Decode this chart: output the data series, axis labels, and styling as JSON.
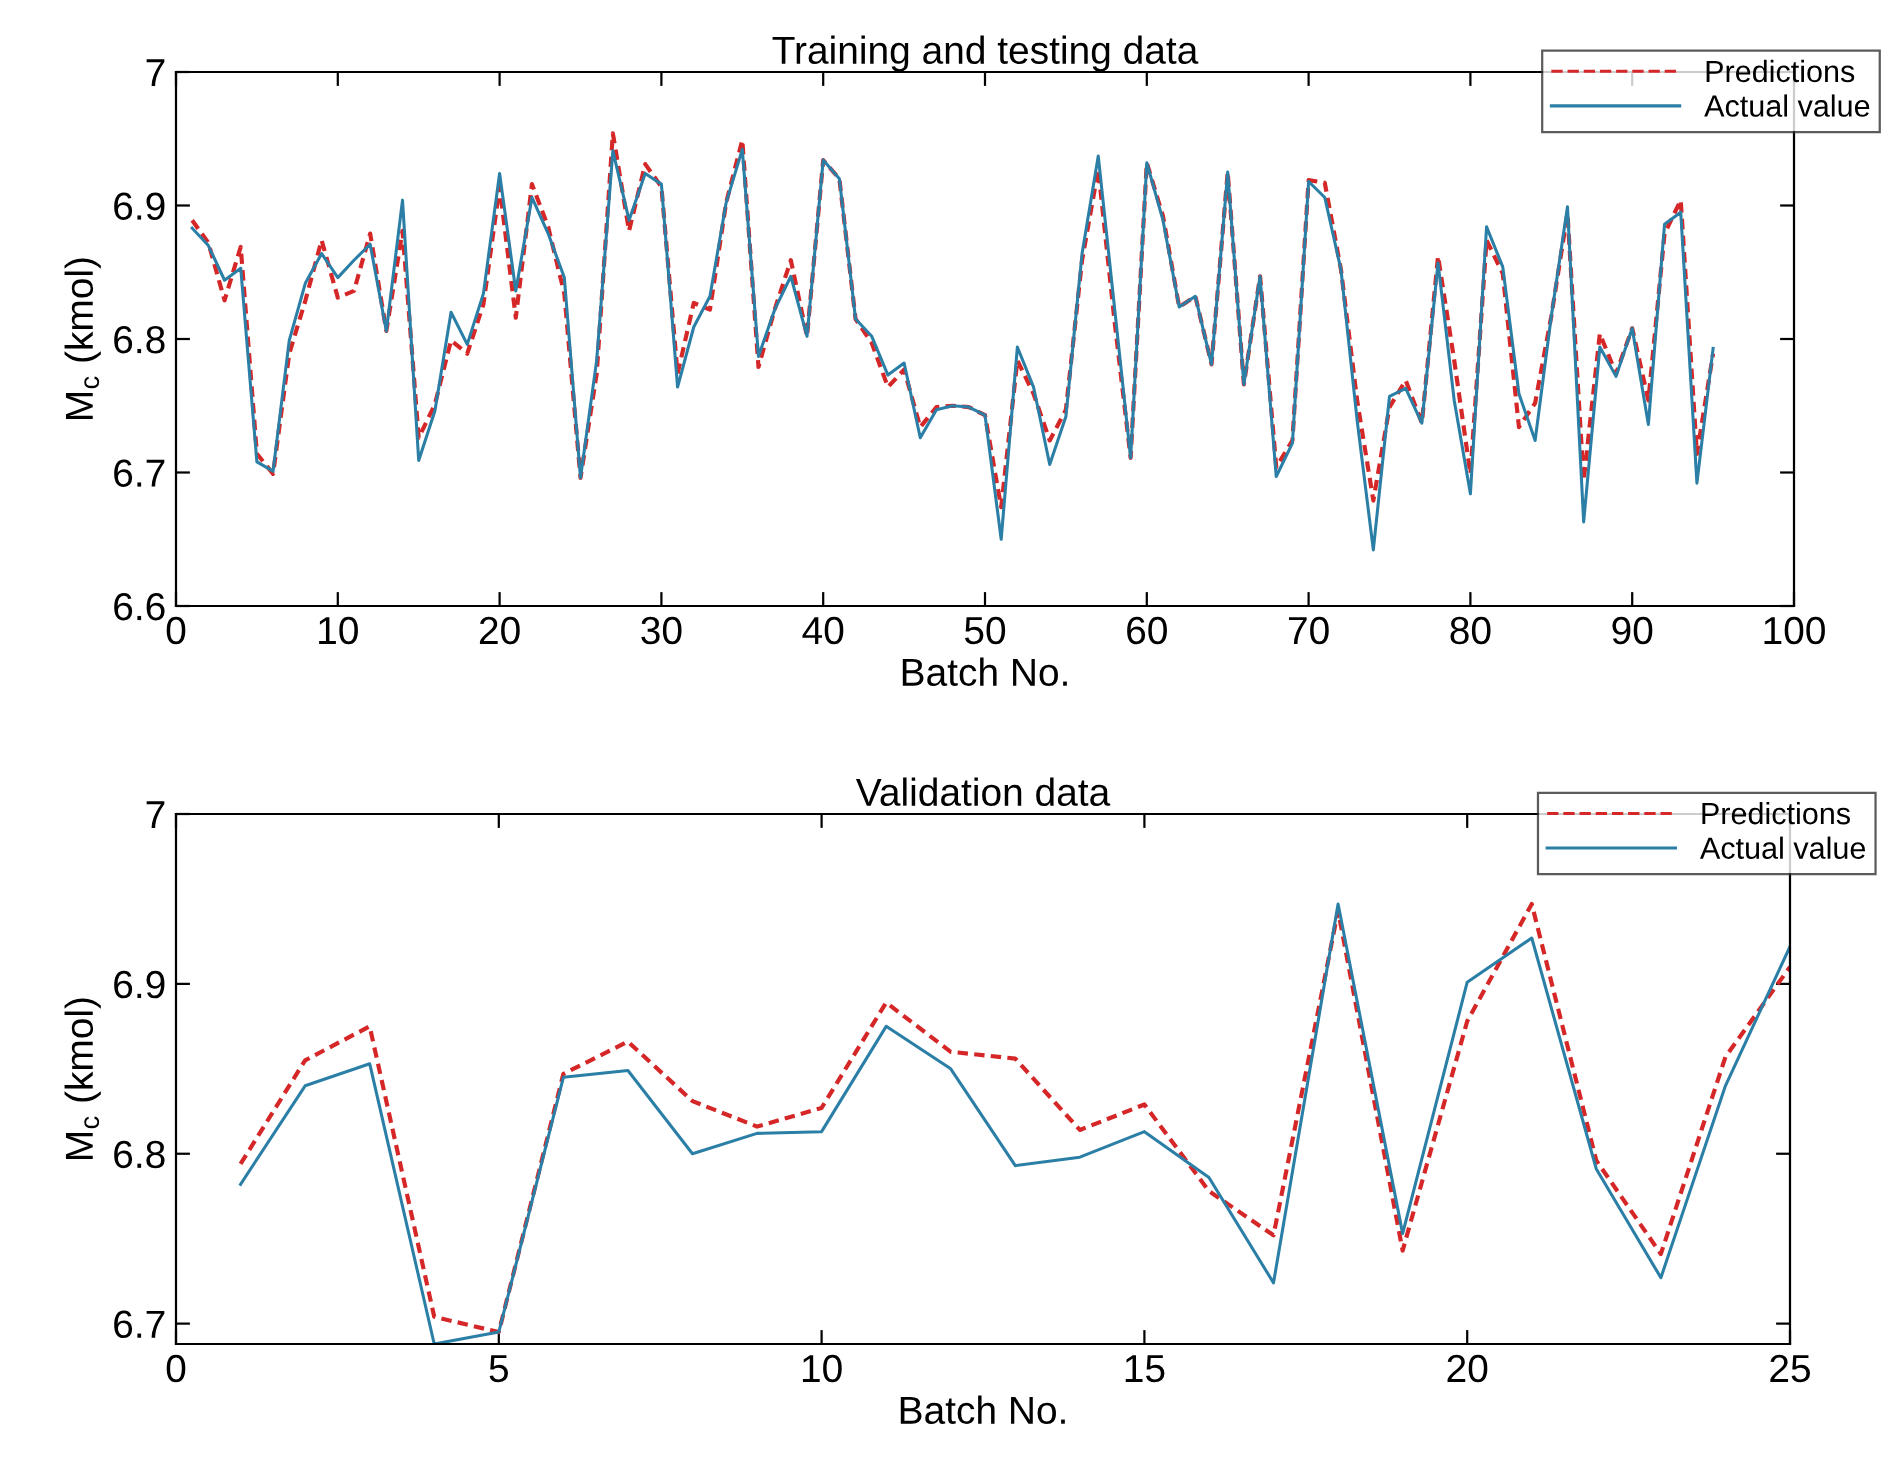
{
  "chart_data": [
    {
      "type": "line",
      "title": "Training and testing data",
      "xlabel": "Batch No.",
      "ylabel": "M$_{c}$ (kmol)",
      "xlim": [
        0,
        100
      ],
      "xticks": [
        0,
        10,
        20,
        30,
        40,
        50,
        60,
        70,
        80,
        90,
        100
      ],
      "ylim": [
        6.6,
        7
      ],
      "yticks": [
        6.6,
        6.7,
        6.8,
        6.9,
        7
      ],
      "legend": "top right",
      "grid": false,
      "x": [
        1,
        2,
        3,
        4,
        5,
        6,
        7,
        8,
        9,
        10,
        11,
        12,
        13,
        14,
        15,
        16,
        17,
        18,
        19,
        20,
        21,
        22,
        23,
        24,
        25,
        26,
        27,
        28,
        29,
        30,
        31,
        32,
        33,
        34,
        35,
        36,
        37,
        38,
        39,
        40,
        41,
        42,
        43,
        44,
        45,
        46,
        47,
        48,
        49,
        50,
        51,
        52,
        53,
        54,
        55,
        56,
        57,
        58,
        59,
        60,
        61,
        62,
        63,
        64,
        65,
        66,
        67,
        68,
        69,
        70,
        71,
        72,
        73,
        74,
        75,
        76,
        77,
        78,
        79,
        80,
        81,
        82,
        83,
        84,
        85,
        86,
        87,
        88,
        89,
        90,
        91,
        92,
        93,
        94,
        95
      ],
      "series": [
        {
          "name": "Predictions",
          "color": "#d62728",
          "line_style": "dashed",
          "values": [
            6.889,
            6.872,
            6.829,
            6.869,
            6.714,
            6.699,
            6.789,
            6.829,
            6.874,
            6.831,
            6.836,
            6.879,
            6.806,
            6.881,
            6.726,
            6.751,
            6.799,
            6.789,
            6.826,
            6.914,
            6.816,
            6.916,
            6.884,
            6.834,
            6.696,
            6.774,
            6.954,
            6.881,
            6.931,
            6.914,
            6.774,
            6.827,
            6.822,
            6.902,
            6.949,
            6.779,
            6.822,
            6.859,
            6.802,
            6.934,
            6.92,
            6.815,
            6.797,
            6.764,
            6.777,
            6.734,
            6.749,
            6.75,
            6.749,
            6.743,
            6.674,
            6.784,
            6.759,
            6.724,
            6.747,
            6.859,
            6.927,
            6.814,
            6.711,
            6.932,
            6.892,
            6.824,
            6.832,
            6.781,
            6.925,
            6.766,
            6.847,
            6.704,
            6.724,
            6.919,
            6.917,
            6.852,
            6.754,
            6.679,
            6.749,
            6.769,
            6.737,
            6.862,
            6.784,
            6.699,
            6.874,
            6.849,
            6.734,
            6.752,
            6.817,
            6.894,
            6.694,
            6.804,
            6.774,
            6.808,
            6.754,
            6.879,
            6.904,
            6.714,
            6.789
          ]
        },
        {
          "name": "Actual value",
          "color": "#2b7fa6",
          "line_style": "solid",
          "values": [
            6.883,
            6.87,
            6.844,
            6.853,
            6.708,
            6.701,
            6.799,
            6.842,
            6.864,
            6.846,
            6.859,
            6.871,
            6.806,
            6.904,
            6.709,
            6.746,
            6.82,
            6.796,
            6.834,
            6.924,
            6.836,
            6.906,
            6.879,
            6.846,
            6.696,
            6.784,
            6.941,
            6.889,
            6.924,
            6.916,
            6.764,
            6.809,
            6.832,
            6.902,
            6.942,
            6.787,
            6.822,
            6.847,
            6.802,
            6.934,
            6.92,
            6.815,
            6.802,
            6.773,
            6.782,
            6.726,
            6.747,
            6.75,
            6.749,
            6.743,
            6.65,
            6.794,
            6.764,
            6.706,
            6.742,
            6.864,
            6.937,
            6.824,
            6.711,
            6.932,
            6.889,
            6.824,
            6.832,
            6.781,
            6.925,
            6.766,
            6.847,
            6.697,
            6.722,
            6.918,
            6.906,
            6.852,
            6.739,
            6.642,
            6.757,
            6.763,
            6.737,
            6.857,
            6.754,
            6.684,
            6.884,
            6.854,
            6.759,
            6.724,
            6.817,
            6.899,
            6.663,
            6.794,
            6.772,
            6.808,
            6.736,
            6.886,
            6.895,
            6.692,
            6.793
          ]
        }
      ]
    },
    {
      "type": "line",
      "title": "Validation data",
      "xlabel": "Batch No.",
      "ylabel": "M$_{c}$ (kmol)",
      "xlim": [
        0,
        25
      ],
      "xticks": [
        0,
        5,
        10,
        15,
        20,
        25
      ],
      "ylim": [
        6.688,
        7
      ],
      "yticks": [
        6.7,
        6.8,
        6.9,
        7
      ],
      "legend": "top right",
      "grid": false,
      "x": [
        1,
        2,
        3,
        4,
        5,
        6,
        7,
        8,
        9,
        10,
        11,
        12,
        13,
        14,
        15,
        16,
        17,
        18,
        19,
        20,
        21,
        22,
        23,
        24,
        25
      ],
      "series": [
        {
          "name": "Predictions",
          "color": "#d62728",
          "line_style": "dashed",
          "values": [
            6.794,
            6.855,
            6.875,
            6.704,
            6.695,
            6.847,
            6.866,
            6.831,
            6.816,
            6.827,
            6.889,
            6.86,
            6.856,
            6.814,
            6.829,
            6.778,
            6.752,
            6.943,
            6.743,
            6.878,
            6.947,
            6.796,
            6.741,
            6.857,
            6.91
          ]
        },
        {
          "name": "Actual value",
          "color": "#2b7fa6",
          "line_style": "solid",
          "values": [
            6.782,
            6.84,
            6.853,
            6.688,
            6.695,
            6.845,
            6.849,
            6.8,
            6.812,
            6.813,
            6.875,
            6.85,
            6.793,
            6.798,
            6.813,
            6.786,
            6.724,
            6.947,
            6.753,
            6.901,
            6.927,
            6.791,
            6.727,
            6.84,
            6.922
          ]
        }
      ]
    }
  ]
}
